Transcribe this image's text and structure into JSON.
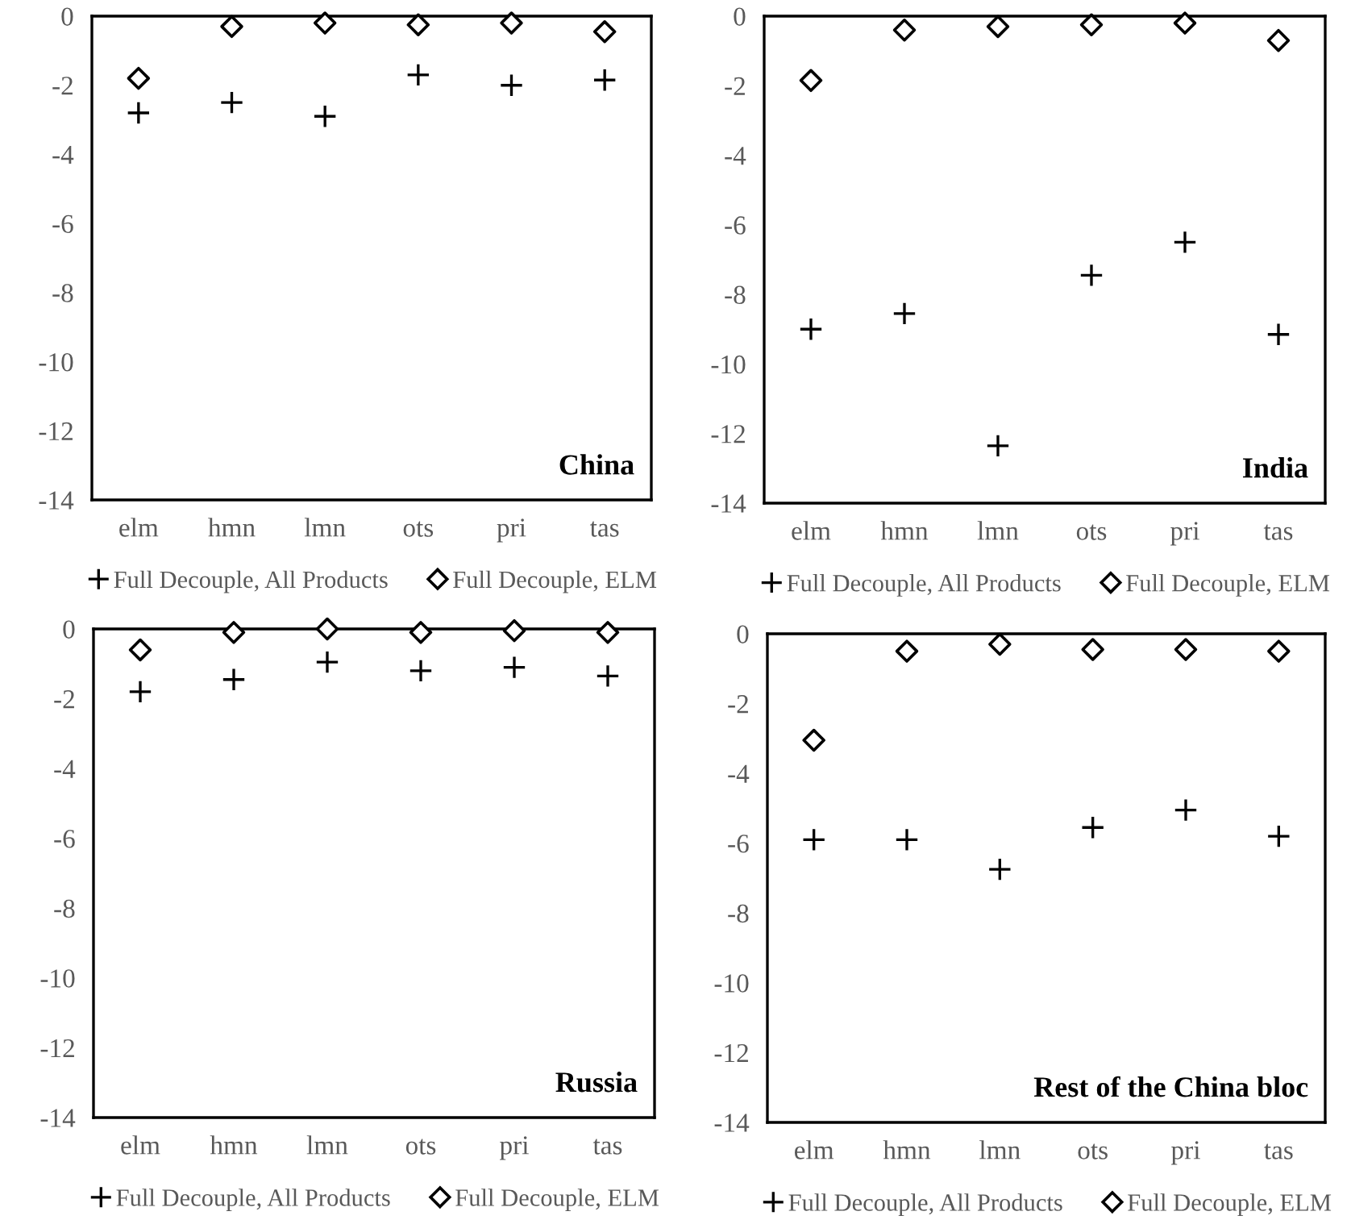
{
  "chart_data": [
    {
      "type": "scatter",
      "categories": [
        "elm",
        "hmn",
        "lmn",
        "ots",
        "pri",
        "tas"
      ],
      "ylim": [
        -14,
        0
      ],
      "yticks": [
        0,
        -2,
        -4,
        -6,
        -8,
        -10,
        -12,
        -14
      ],
      "grid": false,
      "legend": "bottom",
      "annotations": [
        "China"
      ],
      "series": [
        {
          "name": "Full Decouple, All Products",
          "color": "#000000",
          "marker": "cross",
          "values": [
            -2.8,
            -2.5,
            -2.9,
            -1.7,
            -2.0,
            -1.85
          ]
        },
        {
          "name": "Full Decouple, ELM",
          "color": "#000000",
          "marker": "diamond",
          "values": [
            -1.8,
            -0.3,
            -0.2,
            -0.25,
            -0.2,
            -0.45
          ]
        }
      ]
    },
    {
      "type": "scatter",
      "categories": [
        "elm",
        "hmn",
        "lmn",
        "ots",
        "pri",
        "tas"
      ],
      "ylim": [
        -14,
        0
      ],
      "yticks": [
        0,
        -2,
        -4,
        -6,
        -8,
        -10,
        -12,
        -14
      ],
      "grid": false,
      "legend": "bottom",
      "annotations": [
        "India"
      ],
      "series": [
        {
          "name": "Full Decouple, All Products",
          "color": "#000000",
          "marker": "cross",
          "values": [
            -9.0,
            -8.55,
            -12.35,
            -7.45,
            -6.5,
            -9.15
          ]
        },
        {
          "name": "Full Decouple, ELM",
          "color": "#000000",
          "marker": "diamond",
          "values": [
            -1.85,
            -0.4,
            -0.3,
            -0.25,
            -0.2,
            -0.7
          ]
        }
      ]
    },
    {
      "type": "scatter",
      "categories": [
        "elm",
        "hmn",
        "lmn",
        "ots",
        "pri",
        "tas"
      ],
      "ylim": [
        -14,
        0
      ],
      "yticks": [
        0,
        -2,
        -4,
        -6,
        -8,
        -10,
        -12,
        -14
      ],
      "grid": false,
      "legend": "bottom",
      "annotations": [
        "Russia"
      ],
      "series": [
        {
          "name": "Full Decouple, All Products",
          "color": "#000000",
          "marker": "cross",
          "values": [
            -1.8,
            -1.45,
            -0.95,
            -1.2,
            -1.1,
            -1.35
          ]
        },
        {
          "name": "Full Decouple, ELM",
          "color": "#000000",
          "marker": "diamond",
          "values": [
            -0.6,
            -0.1,
            0,
            -0.1,
            -0.05,
            -0.1
          ]
        }
      ]
    },
    {
      "type": "scatter",
      "categories": [
        "elm",
        "hmn",
        "lmn",
        "ots",
        "pri",
        "tas"
      ],
      "ylim": [
        -14,
        0
      ],
      "yticks": [
        0,
        -2,
        -4,
        -6,
        -8,
        -10,
        -12,
        -14
      ],
      "grid": false,
      "legend": "bottom",
      "annotations": [
        "Rest of the China bloc"
      ],
      "series": [
        {
          "name": "Full Decouple, All Products",
          "color": "#000000",
          "marker": "cross",
          "values": [
            -5.9,
            -5.9,
            -6.75,
            -5.55,
            -5.05,
            -5.8
          ]
        },
        {
          "name": "Full Decouple, ELM",
          "color": "#000000",
          "marker": "diamond",
          "values": [
            -3.05,
            -0.5,
            -0.3,
            -0.45,
            -0.45,
            -0.5
          ]
        }
      ]
    }
  ]
}
